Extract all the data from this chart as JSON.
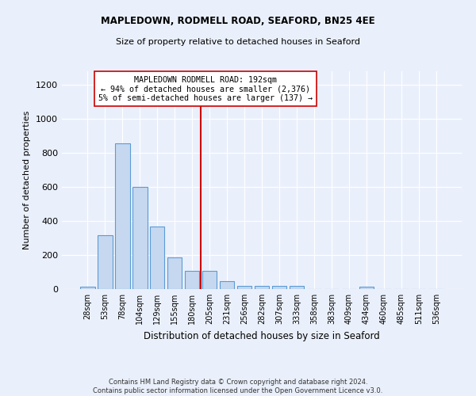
{
  "title1": "MAPLEDOWN, RODMELL ROAD, SEAFORD, BN25 4EE",
  "title2": "Size of property relative to detached houses in Seaford",
  "xlabel": "Distribution of detached houses by size in Seaford",
  "ylabel": "Number of detached properties",
  "categories": [
    "28sqm",
    "53sqm",
    "78sqm",
    "104sqm",
    "129sqm",
    "155sqm",
    "180sqm",
    "205sqm",
    "231sqm",
    "256sqm",
    "282sqm",
    "307sqm",
    "333sqm",
    "358sqm",
    "383sqm",
    "409sqm",
    "434sqm",
    "460sqm",
    "485sqm",
    "511sqm",
    "536sqm"
  ],
  "values": [
    15,
    315,
    855,
    600,
    370,
    185,
    105,
    105,
    45,
    20,
    18,
    18,
    18,
    0,
    0,
    0,
    12,
    0,
    0,
    0,
    0
  ],
  "bar_color": "#c5d8f0",
  "bar_edge_color": "#5b9bd5",
  "ref_line_color": "#cc0000",
  "annotation_line1": "MAPLEDOWN RODMELL ROAD: 192sqm",
  "annotation_line2": "← 94% of detached houses are smaller (2,376)",
  "annotation_line3": "5% of semi-detached houses are larger (137) →",
  "ylim": [
    0,
    1280
  ],
  "yticks": [
    0,
    200,
    400,
    600,
    800,
    1000,
    1200
  ],
  "footnote1": "Contains HM Land Registry data © Crown copyright and database right 2024.",
  "footnote2": "Contains public sector information licensed under the Open Government Licence v3.0.",
  "bg_color": "#eaf0fb",
  "plot_bg_color": "#eaf0fb",
  "grid_color": "#ffffff"
}
